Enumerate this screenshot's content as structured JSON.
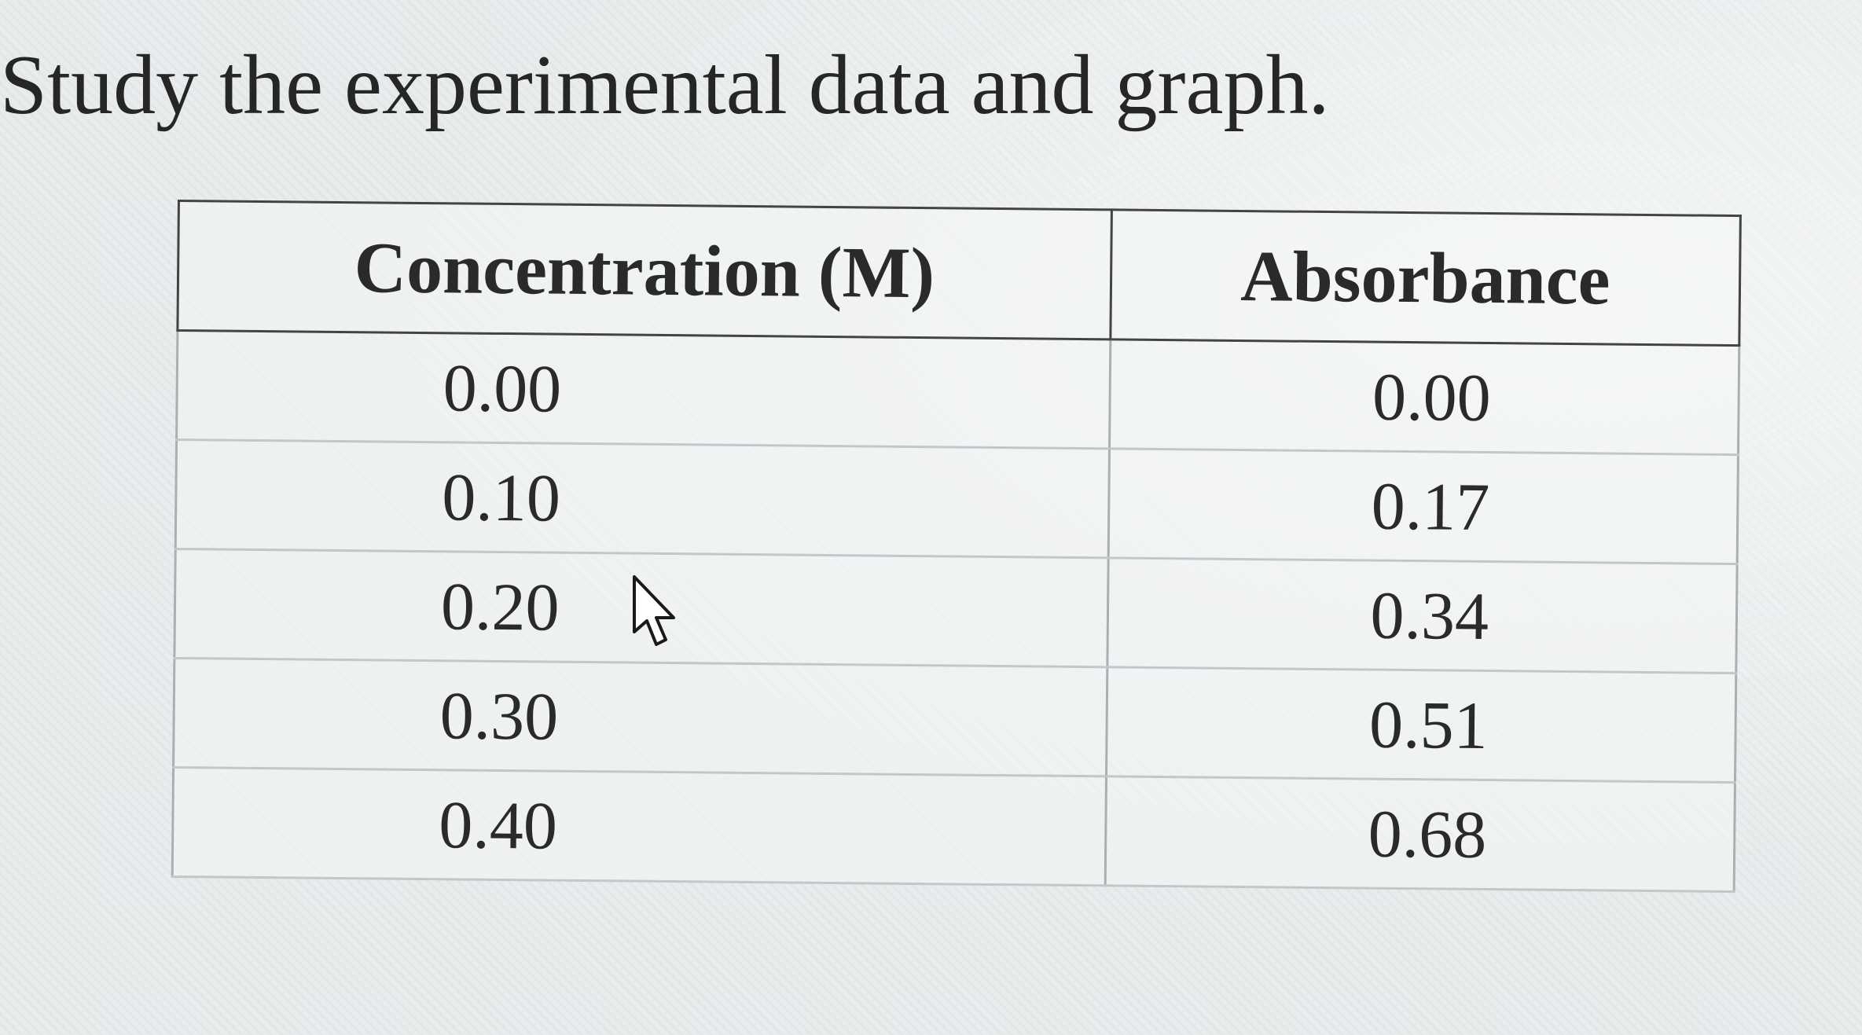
{
  "prompt": "Study the experimental data and graph.",
  "table": {
    "headers": {
      "concentration": "Concentration (M)",
      "absorbance": "Absorbance"
    },
    "rows": [
      {
        "concentration": "0.00",
        "absorbance": "0.00"
      },
      {
        "concentration": "0.10",
        "absorbance": "0.17"
      },
      {
        "concentration": "0.20",
        "absorbance": "0.34"
      },
      {
        "concentration": "0.30",
        "absorbance": "0.51"
      },
      {
        "concentration": "0.40",
        "absorbance": "0.68"
      }
    ]
  },
  "cursor": {
    "icon": "mouse-pointer-icon"
  }
}
